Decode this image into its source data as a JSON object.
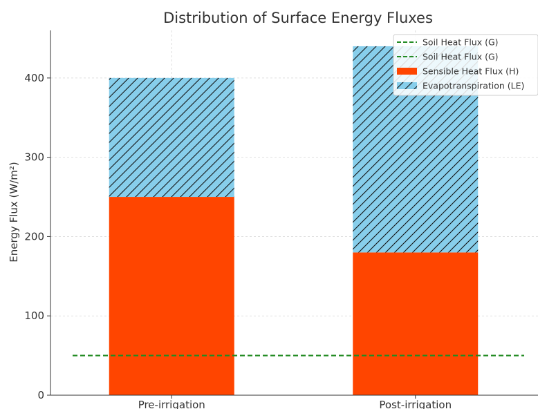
{
  "chart_data": {
    "type": "bar",
    "stacked": true,
    "title": "Distribution of Surface Energy Fluxes",
    "xlabel": "",
    "ylabel": "Energy Flux (W/m²)",
    "categories": [
      "Pre-irrigation",
      "Post-irrigation"
    ],
    "ylim": [
      0,
      460
    ],
    "yticks": [
      0,
      100,
      200,
      300,
      400
    ],
    "grid": true,
    "legend_position": "top-right",
    "series": [
      {
        "name": "Sensible Heat Flux (H)",
        "kind": "bar",
        "values": [
          250,
          180
        ],
        "color": "#FF4500"
      },
      {
        "name": "Evapotranspiration (LE)",
        "kind": "bar",
        "values": [
          150,
          260
        ],
        "color": "#87CEEB",
        "hatch": "diagonal"
      }
    ],
    "reference_lines": [
      {
        "name": "Soil Heat Flux (G)",
        "value": 50,
        "color": "#228B22",
        "style": "dashed"
      },
      {
        "name": "Soil Heat Flux (G)",
        "value": 50,
        "color": "#228B22",
        "style": "dashed"
      }
    ],
    "legend": [
      {
        "label": "Soil Heat Flux (G)",
        "type": "line",
        "color": "#228B22"
      },
      {
        "label": "Soil Heat Flux (G)",
        "type": "line",
        "color": "#228B22"
      },
      {
        "label": "Sensible Heat Flux (H)",
        "type": "patch",
        "color": "#FF4500"
      },
      {
        "label": "Evapotranspiration (LE)",
        "type": "patch-hatched",
        "color": "#87CEEB"
      }
    ]
  }
}
